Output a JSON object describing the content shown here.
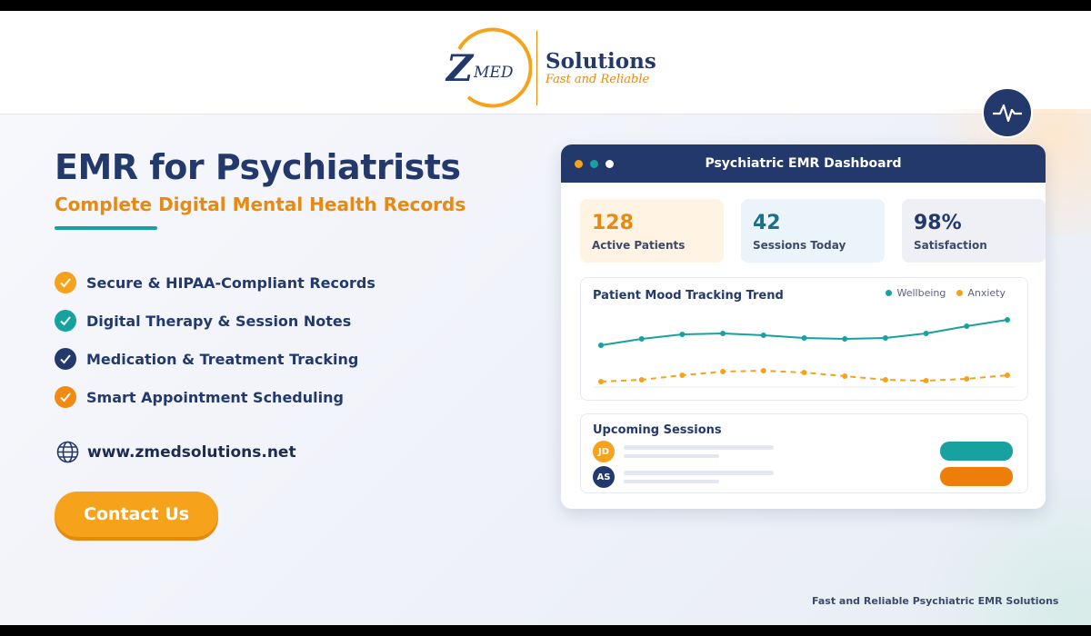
{
  "header": {
    "logo_z": "Z",
    "logo_med": "MED",
    "brand": "Solutions",
    "tagline": "Fast and Reliable"
  },
  "hero": {
    "title": "EMR for Psychiatrists",
    "subtitle": "Complete Digital Mental Health Records",
    "features": [
      "Secure & HIPAA-Compliant Records",
      "Digital Therapy & Session Notes",
      "Medication & Treatment Tracking",
      "Smart Appointment Scheduling"
    ],
    "website": "www.zmedsolutions.net",
    "cta": "Contact Us"
  },
  "dashboard": {
    "title": "Psychiatric EMR Dashboard",
    "stats": [
      {
        "value": "128",
        "label": "Active Patients"
      },
      {
        "value": "42",
        "label": "Sessions Today"
      },
      {
        "value": "98%",
        "label": "Satisfaction"
      }
    ],
    "mood_chart": {
      "type": "line",
      "title": "Patient Mood Tracking Trend",
      "series": [
        {
          "name": "Wellbeing",
          "color": "#17a29f",
          "values": [
            51,
            58,
            63,
            64,
            62,
            59,
            58,
            59,
            64,
            72,
            79
          ]
        },
        {
          "name": "Anxiety",
          "color": "#f5a31d",
          "values": [
            11,
            13,
            18,
            22,
            23,
            21,
            17,
            13,
            12,
            14,
            18
          ]
        }
      ]
    },
    "sessions": {
      "title": "Upcoming Sessions",
      "rows": [
        {
          "initials": "JD"
        },
        {
          "initials": "AS"
        }
      ]
    }
  },
  "footer": "Fast and Reliable Psychiatric EMR Solutions"
}
